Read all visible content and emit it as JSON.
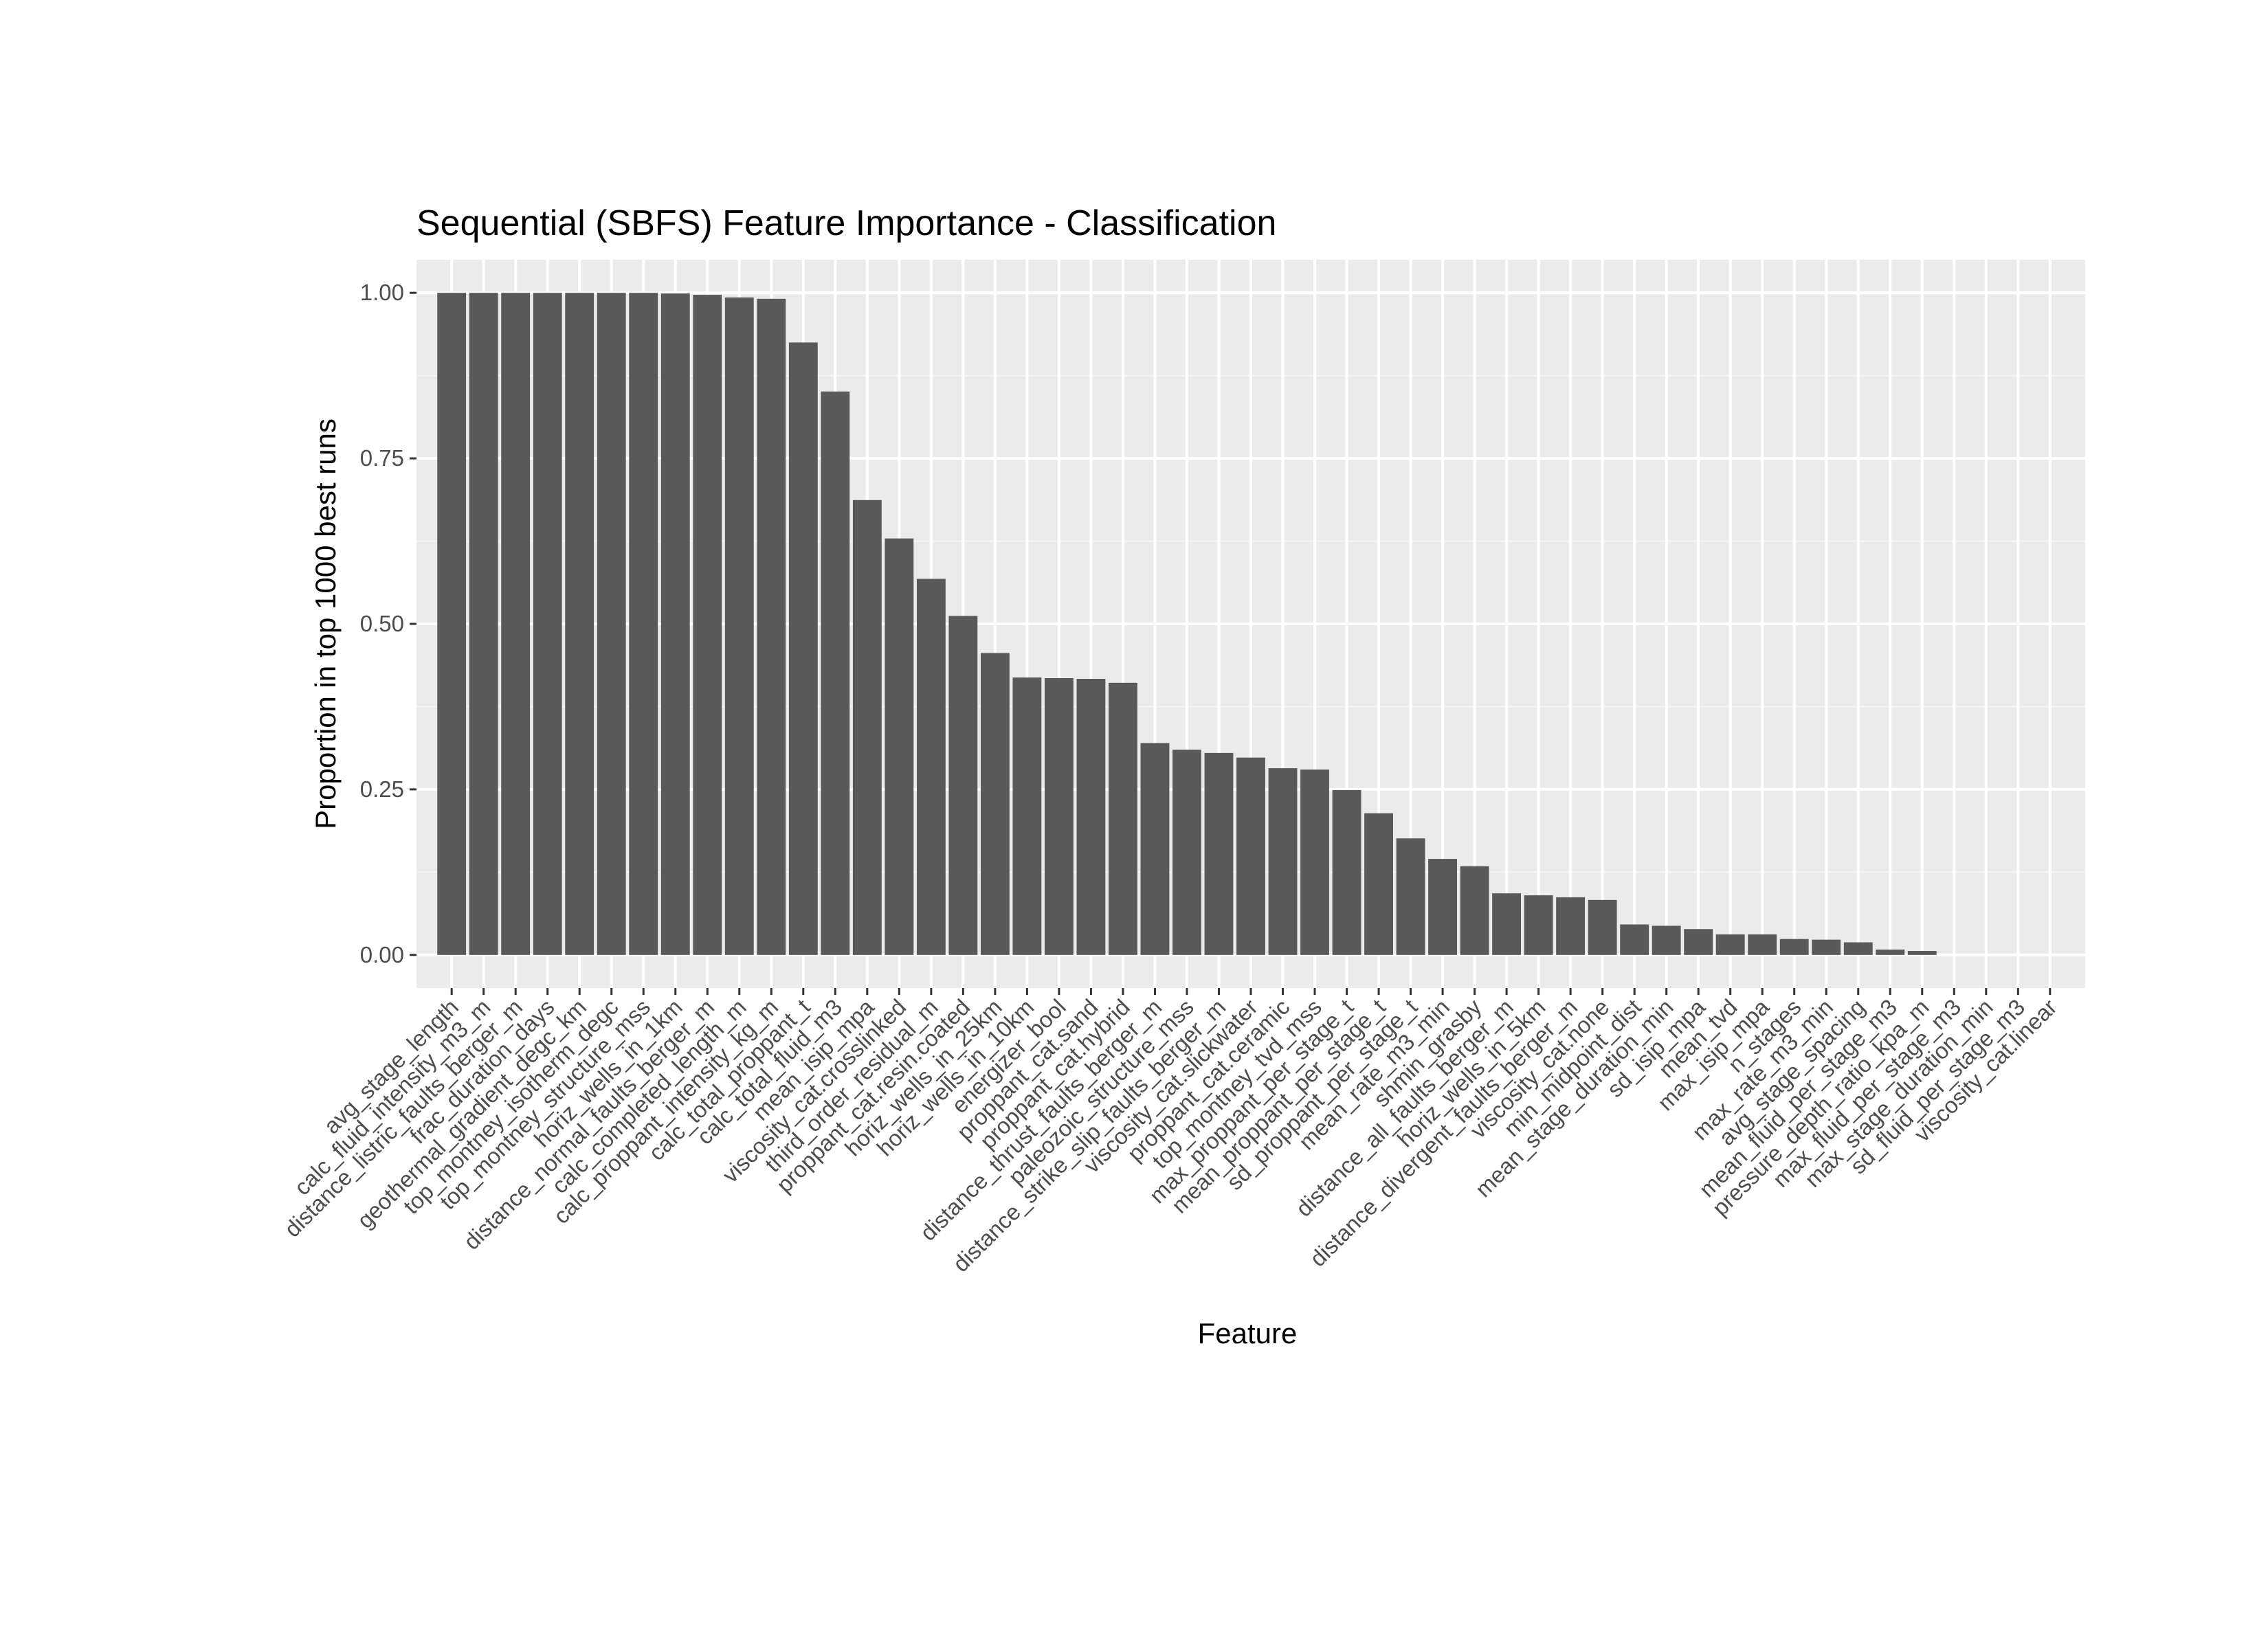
{
  "chart_data": {
    "type": "bar",
    "title": "Sequential (SBFS) Feature Importance - Classification",
    "xlabel": "Feature",
    "ylabel": "Proportion in top 1000 best runs",
    "ylim": [
      -0.05,
      1.05
    ],
    "yticks": [
      0.0,
      0.25,
      0.5,
      0.75,
      1.0
    ],
    "ytick_labels": [
      "0.00",
      "0.25",
      "0.50",
      "0.75",
      "1.00"
    ],
    "grid": true,
    "colors": {
      "bar": "#595959",
      "panel": "#ebebeb",
      "grid_major": "#ffffff",
      "grid_minor": "#f5f5f5"
    },
    "categories": [
      "avg_stage_length",
      "calc_fluid_intensity_m3_m",
      "distance_listric_faults_berger_m",
      "frac_duration_days",
      "geothermal_gradient_degc_km",
      "top_montney_isotherm_degc",
      "top_montney_structure_mss",
      "horiz_wells_in_1km",
      "distance_normal_faults_berger_m",
      "calc_completed_length_m",
      "calc_proppant_intensity_kg_m",
      "calc_total_proppant_t",
      "calc_total_fluid_m3",
      "mean_isip_mpa",
      "viscosity_cat.crosslinked",
      "third_order_residual_m",
      "proppant_cat.resin.coated",
      "horiz_wells_in_25km",
      "horiz_wells_in_10km",
      "energizer_bool",
      "proppant_cat.sand",
      "proppant_cat.hybrid",
      "distance_thrust_faults_berger_m",
      "paleozoic_structure_mss",
      "distance_strike_slip_faults_berger_m",
      "viscosity_cat.slickwater",
      "proppant_cat.ceramic",
      "top_montney_tvd_mss",
      "max_proppant_per_stage_t",
      "mean_proppant_per_stage_t",
      "sd_proppant_per_stage_t",
      "mean_rate_m3_min",
      "shmin_grasby",
      "distance_all_faults_berger_m",
      "horiz_wells_in_5km",
      "distance_divergent_faults_berger_m",
      "viscosity_cat.none",
      "min_midpoint_dist",
      "mean_stage_duration_min",
      "sd_isip_mpa",
      "mean_tvd",
      "max_isip_mpa",
      "n_stages",
      "max_rate_m3_min",
      "avg_stage_spacing",
      "mean_fluid_per_stage_m3",
      "pressure_depth_ratio_kpa_m",
      "max_fluid_per_stage_m3",
      "max_stage_duration_min",
      "sd_fluid_per_stage_m3",
      "viscosity_cat.linear"
    ],
    "values": [
      1.0,
      1.0,
      1.0,
      1.0,
      1.0,
      1.0,
      1.0,
      0.999,
      0.997,
      0.993,
      0.991,
      0.925,
      0.851,
      0.687,
      0.629,
      0.568,
      0.512,
      0.456,
      0.419,
      0.418,
      0.417,
      0.411,
      0.32,
      0.31,
      0.305,
      0.298,
      0.282,
      0.28,
      0.249,
      0.214,
      0.176,
      0.145,
      0.134,
      0.093,
      0.09,
      0.087,
      0.083,
      0.046,
      0.044,
      0.039,
      0.031,
      0.031,
      0.024,
      0.023,
      0.019,
      0.008,
      0.006,
      0.0,
      0.0,
      0.0,
      0.0
    ]
  }
}
